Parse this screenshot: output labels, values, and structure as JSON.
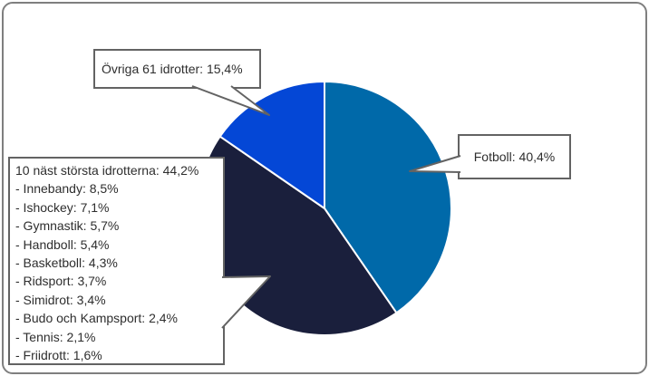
{
  "frame": {
    "background": "#FFFFFF",
    "border_color": "#7F7F7F"
  },
  "chart_data": {
    "type": "pie",
    "title": "",
    "unit": "%",
    "decimal_style": "comma",
    "start_angle_deg": -90,
    "direction": "clockwise",
    "legend_position": "none",
    "separator_color": "#FFFFFF",
    "slices": [
      {
        "id": "fotboll",
        "label": "Fotboll",
        "value_pct": 40.4,
        "color": "#0069A9"
      },
      {
        "id": "tio-nast-storsta",
        "label": "10 näst största idrotterna",
        "value_pct": 44.2,
        "color": "#1A1F3C",
        "breakdown": [
          {
            "label": "Innebandy",
            "value_pct": 8.5
          },
          {
            "label": "Ishockey",
            "value_pct": 7.1
          },
          {
            "label": "Gymnastik",
            "value_pct": 5.7
          },
          {
            "label": "Handboll",
            "value_pct": 5.4
          },
          {
            "label": "Basketboll",
            "value_pct": 4.3
          },
          {
            "label": "Ridsport",
            "value_pct": 3.7
          },
          {
            "label": "Simidrot",
            "value_pct": 3.4
          },
          {
            "label": "Budo och Kampsport",
            "value_pct": 2.4
          },
          {
            "label": "Tennis",
            "value_pct": 2.1
          },
          {
            "label": "Friidrott",
            "value_pct": 1.6
          }
        ]
      },
      {
        "id": "ovriga",
        "label": "Övriga 61 idrotter",
        "value_pct": 15.4,
        "color": "#0447D6"
      }
    ]
  },
  "callouts": {
    "ovriga": {
      "text": "Övriga 61 idrotter: 15,4%"
    },
    "fotboll": {
      "text": "Fotboll: 40,4%"
    },
    "breakdown": {
      "header": "10 näst största idrotterna: 44,2%",
      "items": [
        "- Innebandy: 8,5%",
        "- Ishockey: 7,1%",
        "- Gymnastik: 5,7%",
        "- Handboll: 5,4%",
        "- Basketboll: 4,3%",
        "- Ridsport: 3,7%",
        "- Simidrot: 3,4%",
        "- Budo och Kampsport: 2,4%",
        "- Tennis: 2,1%",
        "- Friidrott: 1,6%"
      ]
    }
  }
}
